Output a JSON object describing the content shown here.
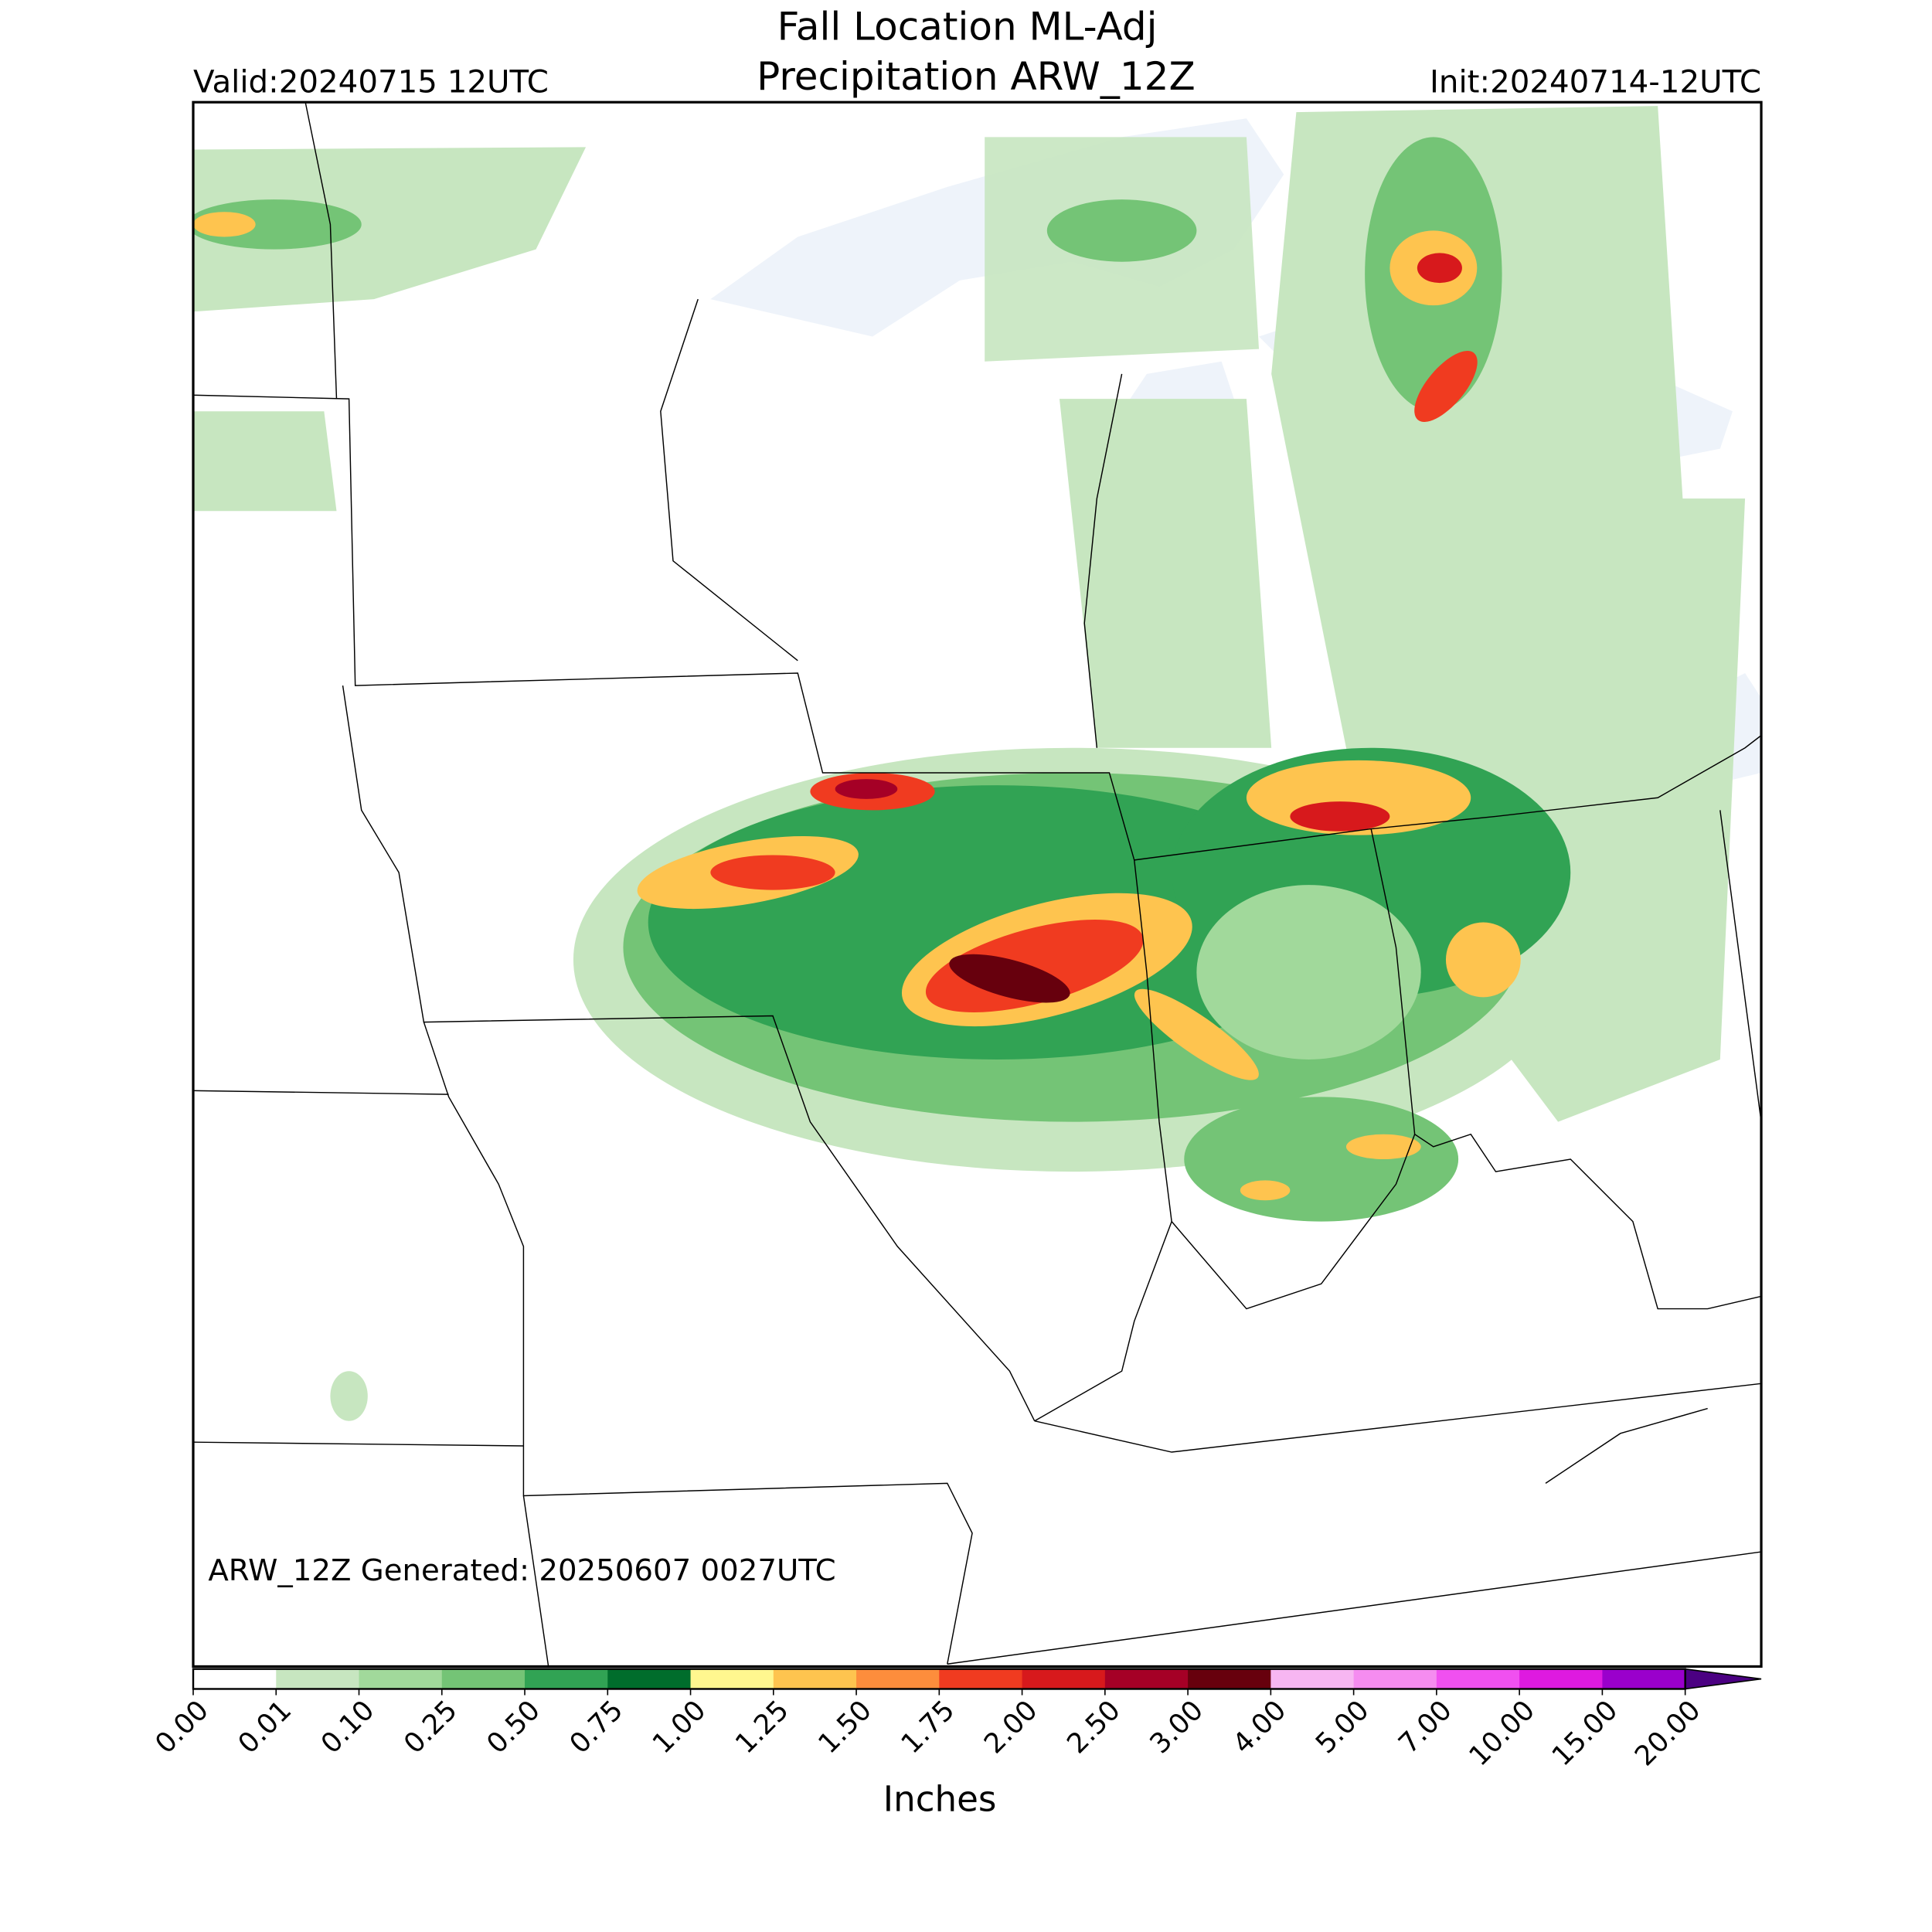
{
  "header": {
    "title_line1": "Fall Location ML-Adj",
    "title_line2": "Precipitation ARW_12Z",
    "valid": "Valid:20240715 12UTC",
    "init": "Init:20240714-12UTC"
  },
  "footer": "ARW_12Z Generated: 20250607 0027UTC",
  "colorbar": {
    "label": "Inches",
    "ticks": [
      {
        "value": 0,
        "label": "0.00"
      },
      {
        "value": 0.01,
        "label": "0.01"
      },
      {
        "value": 0.1,
        "label": "0.10"
      },
      {
        "value": 0.25,
        "label": "0.25"
      },
      {
        "value": 0.5,
        "label": "0.50"
      },
      {
        "value": 0.75,
        "label": "0.75"
      },
      {
        "value": 1,
        "label": "1.00"
      },
      {
        "value": 1.25,
        "label": "1.25"
      },
      {
        "value": 1.5,
        "label": "1.50"
      },
      {
        "value": 1.75,
        "label": "1.75"
      },
      {
        "value": 2,
        "label": "2.00"
      },
      {
        "value": 2.5,
        "label": "2.50"
      },
      {
        "value": 3,
        "label": "3.00"
      },
      {
        "value": 4,
        "label": "4.00"
      },
      {
        "value": 5,
        "label": "5.00"
      },
      {
        "value": 7,
        "label": "7.00"
      },
      {
        "value": 10,
        "label": "10.00"
      },
      {
        "value": 15,
        "label": "15.00"
      },
      {
        "value": 20,
        "label": "20.00"
      }
    ],
    "colors": [
      "#ffffff",
      "#c7e6c0",
      "#a1d99b",
      "#74c476",
      "#31a354",
      "#006d2c",
      "#fff78f",
      "#fec44f",
      "#fd8d3c",
      "#f03b20",
      "#d7191c",
      "#a50026",
      "#67000d",
      "#f7b6f2",
      "#f58cf0",
      "#f050f0",
      "#de1ae0",
      "#9a00cc"
    ],
    "extend_color": "#4b0082"
  }
}
